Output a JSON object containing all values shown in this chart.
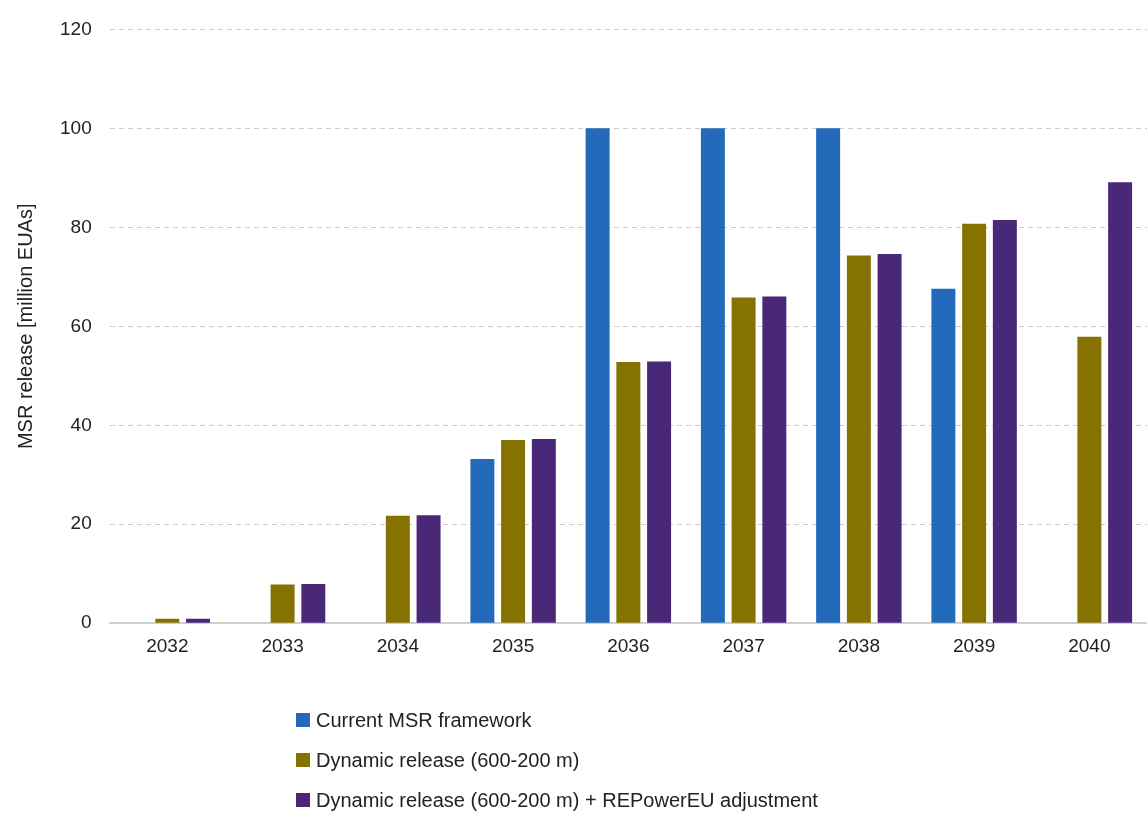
{
  "chart_data": {
    "type": "bar",
    "ylabel": "MSR release [million EUAs]",
    "categories": [
      "2032",
      "2033",
      "2034",
      "2035",
      "2036",
      "2037",
      "2038",
      "2039",
      "2040"
    ],
    "series": [
      {
        "name": "Current MSR framework",
        "color": "#236aba",
        "values": [
          0,
          0,
          0,
          33.2,
          100,
          100,
          100,
          67.6,
          0
        ]
      },
      {
        "name": "Dynamic release (600-200 m)",
        "color": "#867200",
        "values": [
          0.9,
          7.8,
          21.7,
          37.0,
          52.8,
          65.8,
          74.3,
          80.7,
          57.9
        ]
      },
      {
        "name": "Dynamic release (600-200 m) + REPowerEU adjustment",
        "color": "#4a2878",
        "values": [
          0.9,
          7.9,
          21.8,
          37.2,
          52.9,
          66.0,
          74.6,
          81.5,
          89.1
        ]
      }
    ],
    "ylim": [
      0,
      120
    ],
    "yticks": [
      0,
      20,
      40,
      60,
      80,
      100,
      120
    ],
    "grid": "y",
    "legend": "bottom"
  }
}
